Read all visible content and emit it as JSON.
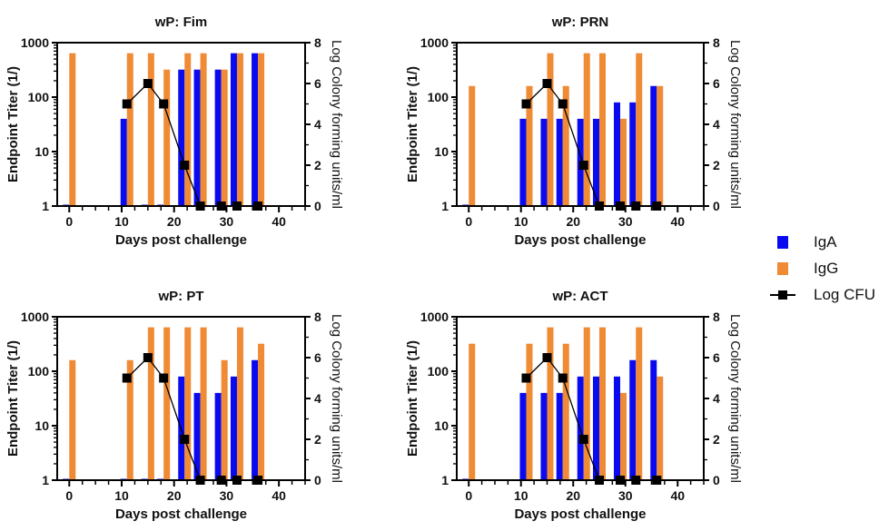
{
  "colors": {
    "IgA": "#0a0af0",
    "IgG": "#ef8a35",
    "LogCFU": "#000000"
  },
  "legend": {
    "items": [
      {
        "label": "IgA",
        "kind": "bar",
        "series": "IgA"
      },
      {
        "label": "IgG",
        "kind": "bar",
        "series": "IgG"
      },
      {
        "label": "Log CFU",
        "kind": "line",
        "series": "LogCFU"
      }
    ]
  },
  "chart_data": [
    {
      "type": "bar",
      "title": "wP: Fim",
      "xlabel": "Days post challenge",
      "ylabel": "Endpoint Titer (1/)",
      "y2label": "Log Colony forming units/ml",
      "xlim": [
        -2.3,
        45
      ],
      "xticks": [
        0,
        10,
        20,
        30,
        40
      ],
      "ylim": [
        1,
        1000
      ],
      "yscale": "log",
      "yticks": [
        1,
        10,
        100,
        1000
      ],
      "y2lim": [
        0,
        8
      ],
      "y2ticks": [
        0,
        2,
        4,
        6,
        8
      ],
      "x": [
        0,
        11,
        15,
        18,
        22,
        25,
        29,
        32,
        36
      ],
      "series": [
        {
          "name": "IgA",
          "axis": "left",
          "type": "bar",
          "values": [
            1,
            40,
            1,
            1,
            320,
            320,
            320,
            640,
            640
          ]
        },
        {
          "name": "IgG",
          "axis": "left",
          "type": "bar",
          "values": [
            640,
            640,
            640,
            320,
            640,
            640,
            320,
            640,
            640
          ]
        },
        {
          "name": "Log CFU",
          "axis": "right",
          "type": "line",
          "x": [
            11,
            15,
            18,
            22,
            25,
            29,
            32,
            36
          ],
          "values": [
            5,
            6,
            5,
            2,
            0,
            0,
            0,
            0
          ]
        }
      ]
    },
    {
      "type": "bar",
      "title": "wP: PRN",
      "xlabel": "Days post challenge",
      "ylabel": "Endpoint Titer (1/)",
      "y2label": "Log Colony forming units/ml",
      "xlim": [
        -2.3,
        45
      ],
      "xticks": [
        0,
        10,
        20,
        30,
        40
      ],
      "ylim": [
        1,
        1000
      ],
      "yscale": "log",
      "yticks": [
        1,
        10,
        100,
        1000
      ],
      "y2lim": [
        0,
        8
      ],
      "y2ticks": [
        0,
        2,
        4,
        6,
        8
      ],
      "x": [
        0,
        11,
        15,
        18,
        22,
        25,
        29,
        32,
        36
      ],
      "series": [
        {
          "name": "IgA",
          "axis": "left",
          "type": "bar",
          "values": [
            1,
            40,
            40,
            40,
            40,
            40,
            80,
            80,
            160
          ]
        },
        {
          "name": "IgG",
          "axis": "left",
          "type": "bar",
          "values": [
            160,
            160,
            640,
            160,
            640,
            640,
            40,
            640,
            160
          ]
        },
        {
          "name": "Log CFU",
          "axis": "right",
          "type": "line",
          "x": [
            11,
            15,
            18,
            22,
            25,
            29,
            32,
            36
          ],
          "values": [
            5,
            6,
            5,
            2,
            0,
            0,
            0,
            0
          ]
        }
      ]
    },
    {
      "type": "bar",
      "title": "wP: PT",
      "xlabel": "Days post challenge",
      "ylabel": "Endpoint Titer (1/)",
      "y2label": "Log Colony forming units/ml",
      "xlim": [
        -2.3,
        45
      ],
      "xticks": [
        0,
        10,
        20,
        30,
        40
      ],
      "ylim": [
        1,
        1000
      ],
      "yscale": "log",
      "yticks": [
        1,
        10,
        100,
        1000
      ],
      "y2lim": [
        0,
        8
      ],
      "y2ticks": [
        0,
        2,
        4,
        6,
        8
      ],
      "x": [
        0,
        11,
        15,
        18,
        22,
        25,
        29,
        32,
        36
      ],
      "series": [
        {
          "name": "IgA",
          "axis": "left",
          "type": "bar",
          "values": [
            1,
            1,
            1,
            1,
            80,
            40,
            40,
            80,
            160
          ]
        },
        {
          "name": "IgG",
          "axis": "left",
          "type": "bar",
          "values": [
            160,
            160,
            640,
            640,
            640,
            640,
            160,
            640,
            320
          ]
        },
        {
          "name": "Log CFU",
          "axis": "right",
          "type": "line",
          "x": [
            11,
            15,
            18,
            22,
            25,
            29,
            32,
            36
          ],
          "values": [
            5,
            6,
            5,
            2,
            0,
            0,
            0,
            0
          ]
        }
      ]
    },
    {
      "type": "bar",
      "title": "wP: ACT",
      "xlabel": "Days post challenge",
      "ylabel": "Endpoint Titer (1/)",
      "y2label": "Log Colony forming units/ml",
      "xlim": [
        -2.3,
        45
      ],
      "xticks": [
        0,
        10,
        20,
        30,
        40
      ],
      "ylim": [
        1,
        1000
      ],
      "yscale": "log",
      "yticks": [
        1,
        10,
        100,
        1000
      ],
      "y2lim": [
        0,
        8
      ],
      "y2ticks": [
        0,
        2,
        4,
        6,
        8
      ],
      "x": [
        0,
        11,
        15,
        18,
        22,
        25,
        29,
        32,
        36
      ],
      "series": [
        {
          "name": "IgA",
          "axis": "left",
          "type": "bar",
          "values": [
            1,
            40,
            40,
            40,
            80,
            80,
            80,
            160,
            160
          ]
        },
        {
          "name": "IgG",
          "axis": "left",
          "type": "bar",
          "values": [
            320,
            320,
            640,
            320,
            640,
            640,
            40,
            640,
            80
          ]
        },
        {
          "name": "Log CFU",
          "axis": "right",
          "type": "line",
          "x": [
            11,
            15,
            18,
            22,
            25,
            29,
            32,
            36
          ],
          "values": [
            5,
            6,
            5,
            2,
            0,
            0,
            0,
            0
          ]
        }
      ]
    }
  ]
}
